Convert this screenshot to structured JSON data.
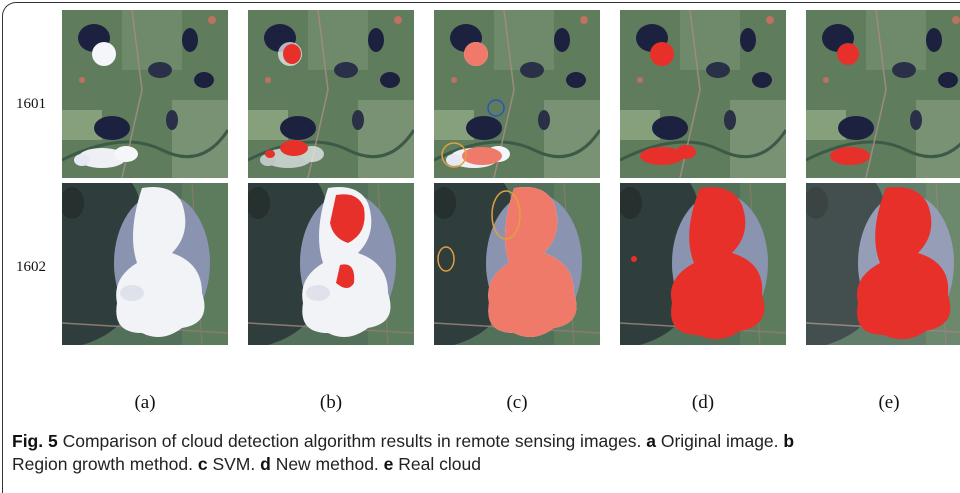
{
  "figure": {
    "rows": [
      "1601",
      "1602"
    ],
    "columns": [
      "(a)",
      "(b)",
      "(c)",
      "(d)",
      "(e)"
    ],
    "caption": {
      "label": "Fig. 5",
      "text": "Comparison of cloud detection algorithm results in remote sensing images.",
      "items": [
        {
          "key": "a",
          "text": "Original image."
        },
        {
          "key": "b",
          "text": "Region growth method."
        },
        {
          "key": "c",
          "text": "SVM."
        },
        {
          "key": "d",
          "text": "New method."
        },
        {
          "key": "e",
          "text": "Real cloud"
        }
      ]
    }
  }
}
